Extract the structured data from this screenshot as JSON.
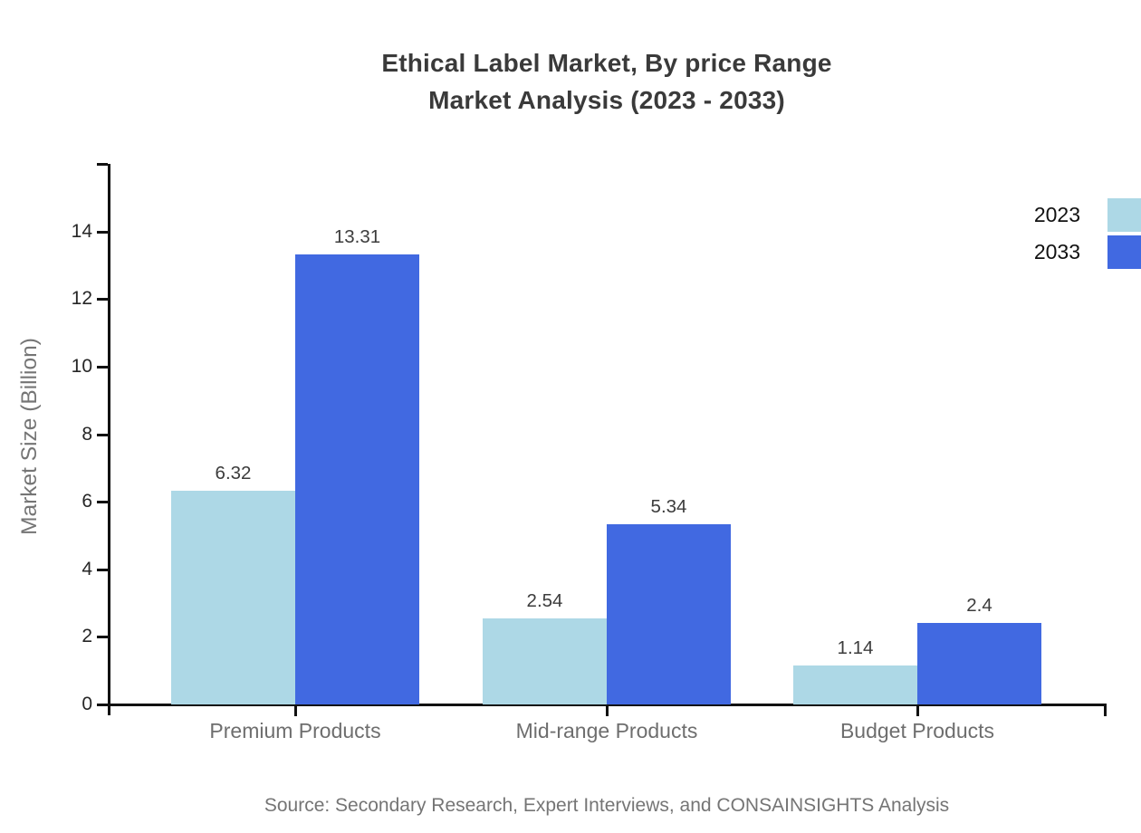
{
  "title": {
    "line1": "Ethical Label Market, By price Range",
    "line2": "Market Analysis (2023 - 2033)"
  },
  "source": "Source: Secondary Research, Expert Interviews, and CONSAINSIGHTS Analysis",
  "chart_data": {
    "type": "bar",
    "title": "Ethical Label Market, By price Range — Market Analysis (2023 - 2033)",
    "xlabel": "",
    "ylabel": "Market Size (Billion)",
    "categories": [
      "Premium Products",
      "Mid-range Products",
      "Budget Products"
    ],
    "series": [
      {
        "name": "2023",
        "color": "#ADD8E6",
        "values": [
          6.32,
          2.54,
          1.14
        ],
        "labels": [
          "6.32",
          "2.54",
          "1.14"
        ]
      },
      {
        "name": "2033",
        "color": "#4169E1",
        "values": [
          13.31,
          5.34,
          2.4
        ],
        "labels": [
          "13.31",
          "5.34",
          "2.4"
        ]
      }
    ],
    "y_ticks": [
      0,
      2,
      4,
      6,
      8,
      10,
      12,
      14
    ],
    "ylim": [
      0,
      16
    ],
    "grid": false,
    "legend_position": "top-right"
  },
  "colors": {
    "axis": "#111111",
    "title_text": "#3a3a3a",
    "tick_label": "#262626",
    "category_label": "#6e6e6e",
    "value_label": "#3c3c3c",
    "muted_text": "#757575",
    "legend_text": "#111111",
    "series_2023": "#ADD8E6",
    "series_2033": "#4169E1"
  }
}
